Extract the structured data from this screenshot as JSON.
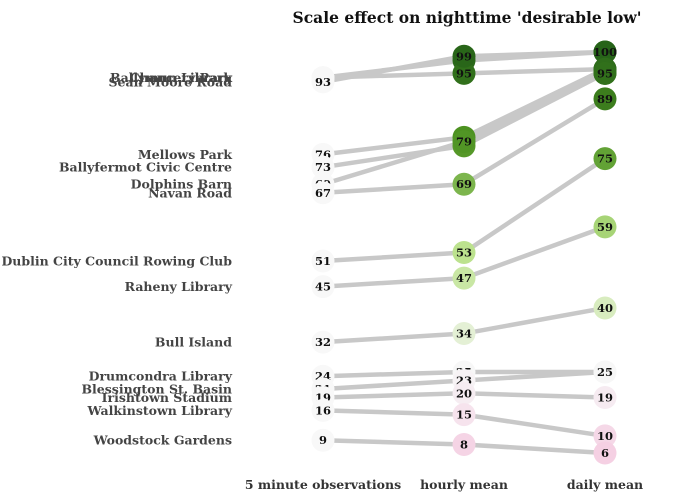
{
  "chart_data": {
    "type": "slope",
    "title": "Scale effect on nighttime 'desirable low'",
    "columns": [
      "5 minute observations",
      "hourly mean",
      "daily mean"
    ],
    "ylim": [
      0,
      100
    ],
    "colors": {
      "line": "#c8c8c8",
      "scale": [
        "#f4c4dd",
        "#f7f7f7",
        "#b8e186",
        "#4d9221",
        "#276419"
      ]
    },
    "series": [
      {
        "name": "Ballymun Library",
        "values": [
          94,
          98,
          100
        ]
      },
      {
        "name": "Chancery Park",
        "values": [
          94,
          95,
          96
        ]
      },
      {
        "name": "Sean Moore Road",
        "values": [
          93,
          99,
          100
        ]
      },
      {
        "name": "Mellows Park",
        "values": [
          76,
          80,
          96
        ]
      },
      {
        "name": "Ballyfermot Civic Centre",
        "values": [
          73,
          78,
          95
        ]
      },
      {
        "name": "Dolphins Barn",
        "values": [
          69,
          79,
          95
        ]
      },
      {
        "name": "Navan Road",
        "values": [
          67,
          69,
          89
        ]
      },
      {
        "name": "Dublin City Council Rowing Club",
        "values": [
          51,
          53,
          75
        ]
      },
      {
        "name": "Raheny Library",
        "values": [
          45,
          47,
          59
        ]
      },
      {
        "name": "Bull Island",
        "values": [
          32,
          34,
          40
        ]
      },
      {
        "name": "Drumcondra Library",
        "values": [
          24,
          25,
          25
        ]
      },
      {
        "name": "Blessington St. Basin",
        "values": [
          21,
          23,
          25
        ]
      },
      {
        "name": "Irishtown Stadium",
        "values": [
          19,
          20,
          19
        ]
      },
      {
        "name": "Walkinstown Library",
        "values": [
          16,
          15,
          10
        ]
      },
      {
        "name": "Woodstock Gardens",
        "values": [
          9,
          8,
          6
        ]
      }
    ]
  }
}
